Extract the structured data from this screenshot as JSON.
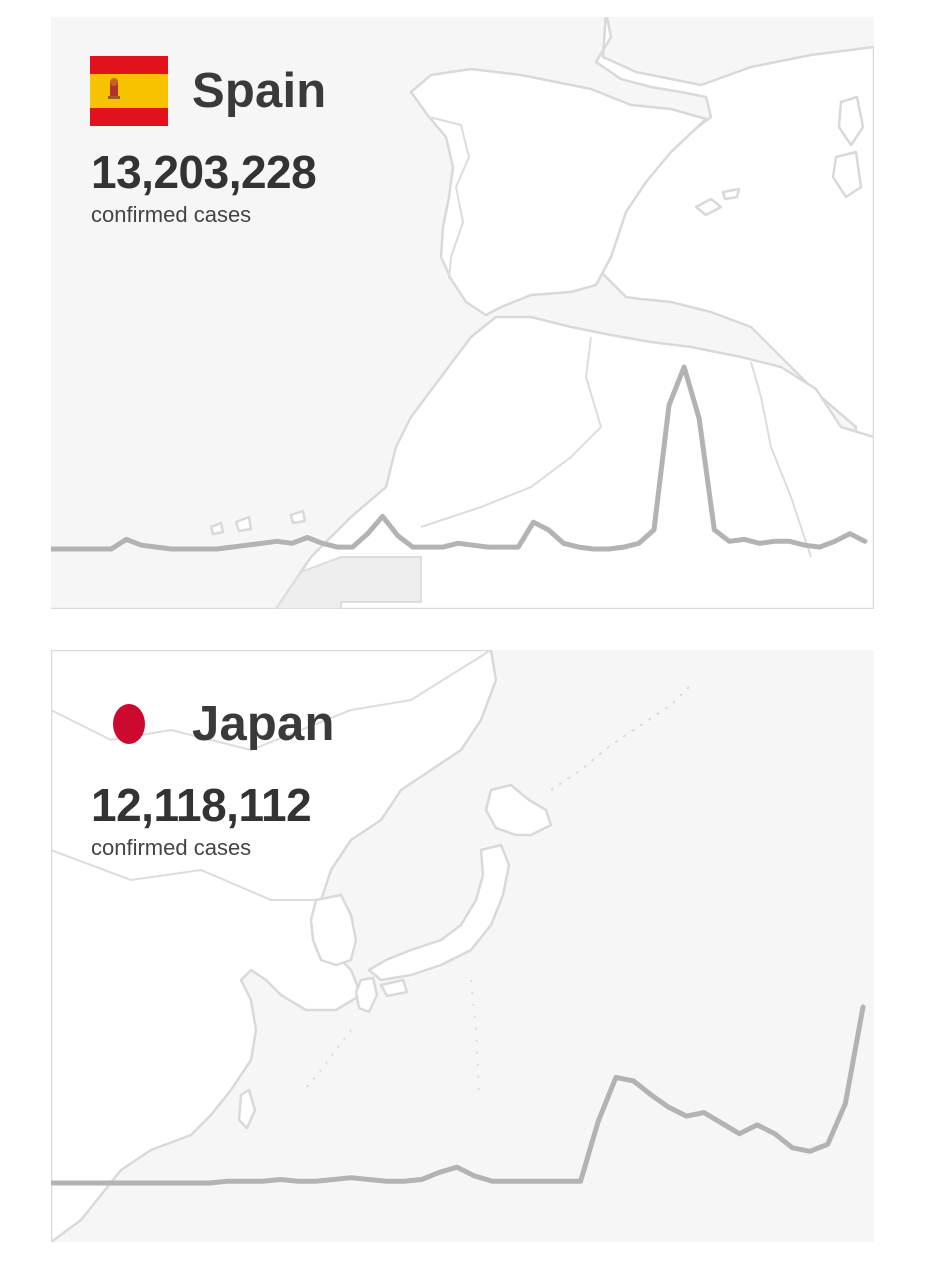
{
  "cards": [
    {
      "country": "Spain",
      "flag_icon": "spain-flag-icon",
      "flag_colors": {
        "red": "#e1121b",
        "yellow": "#f7c300"
      },
      "confirmed_cases": "13,203,228",
      "cases_label": "confirmed cases",
      "trend_color": "#b3b3b3"
    },
    {
      "country": "Japan",
      "flag_icon": "japan-flag-icon",
      "flag_colors": {
        "red": "#cc0a2f"
      },
      "confirmed_cases": "12,118,112",
      "cases_label": "confirmed cases",
      "trend_color": "#b3b3b3"
    }
  ],
  "chart_data": [
    {
      "type": "line",
      "title": "",
      "series": [
        {
          "values": [
            0,
            0,
            0,
            0,
            0,
            5,
            2,
            1,
            0,
            0,
            0,
            0,
            1,
            2,
            3,
            4,
            3,
            6,
            3,
            1,
            1,
            8,
            17,
            7,
            1,
            1,
            1,
            3,
            2,
            1,
            1,
            1,
            14,
            10,
            3,
            1,
            0,
            0,
            1,
            3,
            10,
            75,
            95,
            68,
            10,
            4,
            5,
            3,
            4,
            4,
            2,
            1,
            4,
            8,
            4
          ]
        }
      ]
    },
    {
      "type": "line",
      "title": "",
      "series": [
        {
          "values": [
            0,
            0,
            0,
            0,
            0,
            0,
            0,
            0,
            0,
            0,
            1,
            1,
            1,
            2,
            1,
            1,
            2,
            3,
            2,
            1,
            1,
            2,
            6,
            9,
            4,
            1,
            1,
            1,
            1,
            1,
            1,
            35,
            60,
            58,
            50,
            43,
            38,
            40,
            34,
            28,
            33,
            28,
            20,
            18,
            22,
            45,
            100
          ]
        }
      ]
    }
  ]
}
